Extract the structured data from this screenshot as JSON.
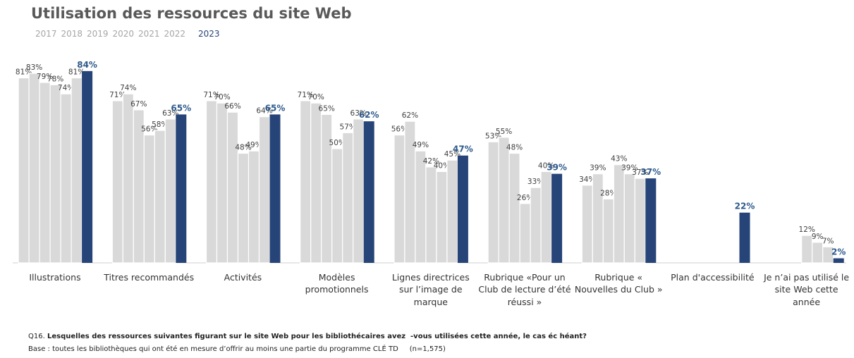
{
  "chart_data": {
    "type": "bar",
    "title": "Utilisation des ressources du site Web",
    "categories": [
      "Illustrations",
      "Titres recommandés",
      "Activités",
      "Modèles promotionnels",
      "Lignes directrices sur l’image de marque",
      "Rubrique «Pour un Club de lecture d’été réussi »",
      "Rubrique « Nouvelles du Club »",
      "Plan d'accessibilité",
      "Je n’ai pas utilisé le site Web cette année"
    ],
    "series": [
      {
        "name": "2017",
        "color": "#d9d9d9",
        "values": [
          81,
          71,
          71,
          71,
          56,
          53,
          34,
          null,
          null
        ],
        "value_labels": [
          "81%",
          "71%",
          "71%",
          "71%",
          "56%",
          "53%",
          "34%",
          null,
          null
        ]
      },
      {
        "name": "2018",
        "color": "#d9d9d9",
        "values": [
          83,
          74,
          70,
          70,
          62,
          55,
          39,
          null,
          null
        ],
        "value_labels": [
          "83%",
          "74%",
          "70%",
          "70%",
          "62%",
          "55%",
          "39%",
          null,
          null
        ]
      },
      {
        "name": "2019",
        "color": "#d9d9d9",
        "values": [
          79,
          67,
          66,
          65,
          49,
          48,
          28,
          null,
          null
        ],
        "value_labels": [
          "79%",
          "67%",
          "66%",
          "65%",
          "49%",
          "48%",
          "28%",
          null,
          null
        ]
      },
      {
        "name": "2020",
        "color": "#d9d9d9",
        "values": [
          78,
          56,
          48,
          50,
          42,
          26,
          43,
          null,
          12
        ],
        "value_labels": [
          "78%",
          "56%",
          "48%",
          "50%",
          "42%",
          "26%",
          "43%",
          null,
          "12%"
        ]
      },
      {
        "name": "2021",
        "color": "#d9d9d9",
        "values": [
          74,
          58,
          49,
          57,
          40,
          33,
          39,
          null,
          9
        ],
        "value_labels": [
          "74%",
          "58%",
          "49%",
          "57%",
          "40%",
          "33%",
          "39%",
          null,
          "9%"
        ]
      },
      {
        "name": "2022",
        "color": "#d9d9d9",
        "values": [
          81,
          63,
          64,
          63,
          45,
          40,
          37,
          null,
          7
        ],
        "value_labels": [
          "81%",
          "63%",
          "64%",
          "63%",
          "45%",
          "40%",
          "37%",
          null,
          "7%"
        ]
      },
      {
        "name": "2023",
        "color": "#264478",
        "values": [
          84,
          65,
          65,
          62,
          47,
          39,
          37,
          22,
          2
        ],
        "value_labels": [
          "84%",
          "65%",
          "65%",
          "62%",
          "47%",
          "39%",
          "37%",
          "22%",
          "2%"
        ]
      }
    ],
    "footnote_label": "Q16.",
    "footnote_question": "Lesquelles des ressources suivantes figurant sur le site Web pour les bibliothécaires avez  -vous utilisées cette année, le cas éc héant?",
    "base_text": "Base : toutes les bibliothèques qui ont été en mesure d’offrir au moins une partie du programme CLÉ TD",
    "base_n": "(n=1,575)"
  }
}
